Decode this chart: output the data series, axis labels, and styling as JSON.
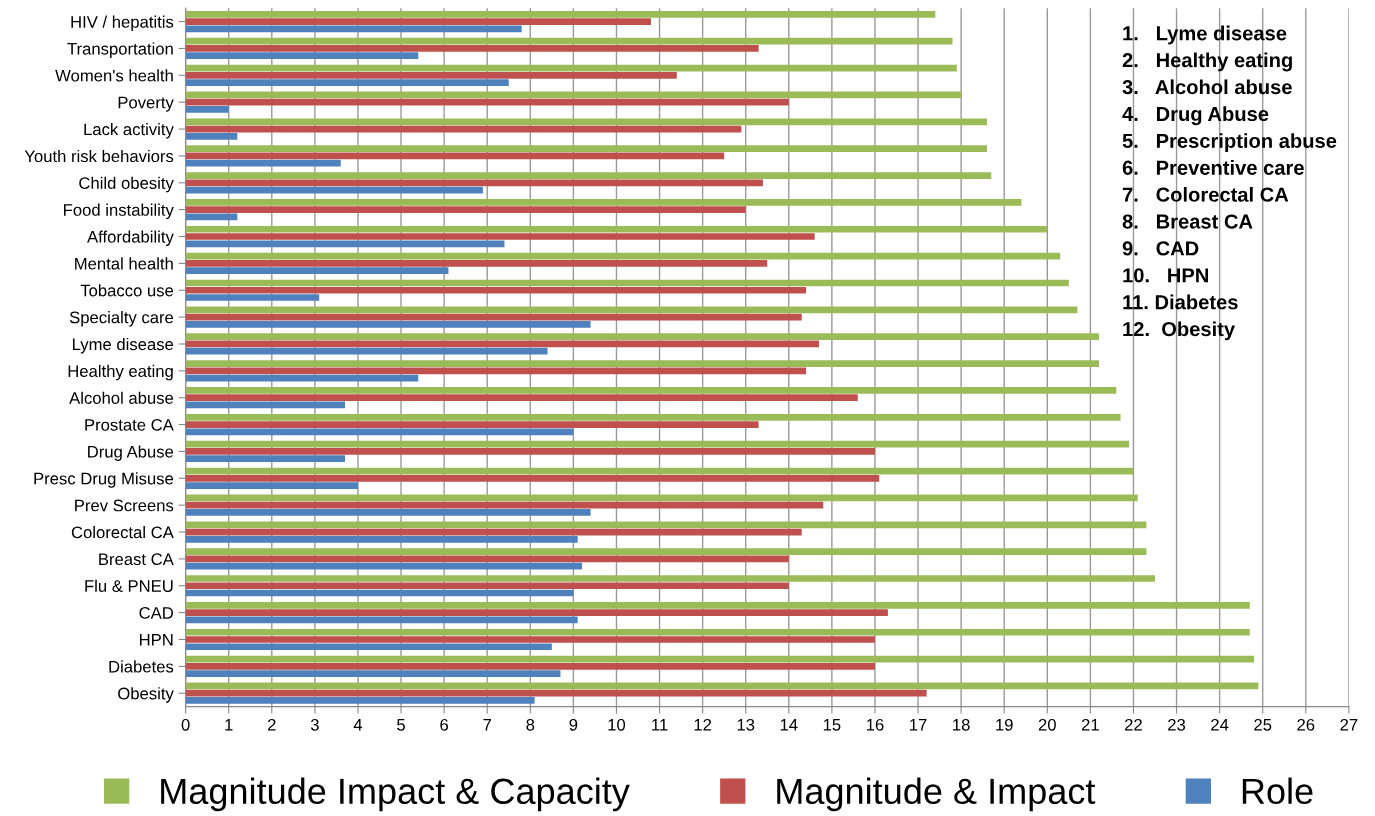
{
  "chart_data": {
    "type": "bar",
    "orientation": "horizontal",
    "categories": [
      "HIV / hepatitis",
      "Transportation",
      "Women's health",
      "Poverty",
      "Lack activity",
      "Youth risk behaviors",
      "Child obesity",
      "Food instability",
      "Affordability",
      "Mental health",
      "Tobacco use",
      "Specialty care",
      "Lyme disease",
      "Healthy eating",
      "Alcohol abuse",
      "Prostate CA",
      "Drug Abuse",
      "Presc Drug Misuse",
      "Prev Screens",
      "Colorectal CA",
      "Breast CA",
      "Flu & PNEU",
      "CAD",
      "HPN",
      "Diabetes",
      "Obesity"
    ],
    "series": [
      {
        "name": "Magnitude Impact & Capacity",
        "color": "#9bbb59",
        "values": [
          17.4,
          17.8,
          17.9,
          18.0,
          18.6,
          18.6,
          18.7,
          19.4,
          20.0,
          20.3,
          20.5,
          20.7,
          21.2,
          21.2,
          21.6,
          21.7,
          21.9,
          22.0,
          22.1,
          22.3,
          22.3,
          22.5,
          24.7,
          24.7,
          24.8,
          24.9
        ]
      },
      {
        "name": "Magnitude & Impact",
        "color": "#c0504d",
        "values": [
          10.8,
          13.3,
          11.4,
          14.0,
          12.9,
          12.5,
          13.4,
          13.0,
          14.6,
          13.5,
          14.4,
          14.3,
          14.7,
          14.4,
          15.6,
          13.3,
          16.0,
          16.1,
          14.8,
          14.3,
          14.0,
          14.0,
          16.3,
          16.0,
          16.0,
          17.2
        ]
      },
      {
        "name": "Role",
        "color": "#4f81bd",
        "values": [
          7.8,
          5.4,
          7.5,
          1.0,
          1.2,
          3.6,
          6.9,
          1.2,
          7.4,
          6.1,
          3.1,
          9.4,
          8.4,
          5.4,
          3.7,
          9.0,
          3.7,
          4.0,
          9.4,
          9.1,
          9.2,
          9.0,
          9.1,
          8.5,
          8.7,
          8.1
        ]
      }
    ],
    "xlim": [
      0,
      27
    ],
    "xticks": [
      0,
      1,
      2,
      3,
      4,
      5,
      6,
      7,
      8,
      9,
      10,
      11,
      12,
      13,
      14,
      15,
      16,
      17,
      18,
      19,
      20,
      21,
      22,
      23,
      24,
      25,
      26,
      27
    ],
    "grid": "x",
    "legend": "bottom",
    "annotations": [
      "1.   Lyme disease",
      "2.   Healthy eating",
      "3.   Alcohol abuse",
      "4.   Drug Abuse",
      "5.   Prescription abuse",
      "6.   Preventive care",
      "7.   Colorectal CA",
      "8.   Breast CA",
      "9.   CAD",
      "10.   HPN",
      "11. Diabetes",
      "12.  Obesity"
    ]
  }
}
